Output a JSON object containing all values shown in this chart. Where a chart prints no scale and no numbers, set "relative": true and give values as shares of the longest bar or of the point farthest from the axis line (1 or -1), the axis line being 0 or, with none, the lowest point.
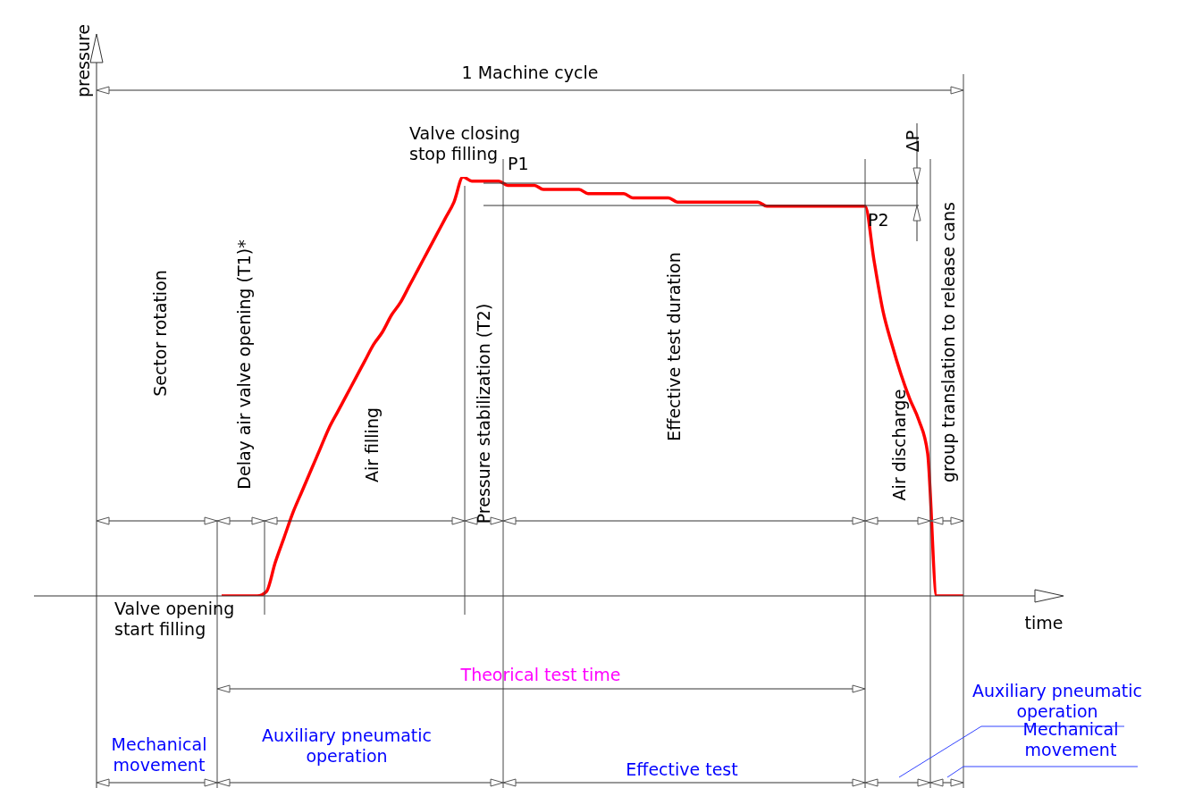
{
  "chart_data": {
    "type": "line",
    "relative": true,
    "xlabel": "time",
    "ylabel": "pressure",
    "marker": "none",
    "line_style": "solid",
    "grid": false,
    "legend": false,
    "categories": [
      null,
      null,
      null,
      null,
      null,
      null,
      null,
      null,
      null,
      null,
      null,
      null,
      null,
      null,
      null,
      null,
      null,
      null,
      null,
      null,
      null,
      null,
      null,
      null,
      null,
      null,
      null,
      null,
      null,
      null,
      null,
      null,
      null,
      null,
      null,
      null,
      null,
      null,
      null,
      null,
      null,
      null,
      null,
      null,
      null,
      null,
      null,
      null,
      null,
      null,
      null,
      null,
      null,
      null,
      null,
      null,
      null,
      null,
      null,
      null,
      null,
      null,
      null,
      null,
      null,
      null,
      null,
      null,
      null,
      null,
      null,
      null,
      null,
      null,
      null,
      null,
      null,
      null,
      null,
      null,
      null,
      null,
      null,
      null,
      null,
      null,
      null,
      null,
      null,
      null,
      null,
      null,
      null,
      null,
      null,
      null,
      null,
      null
    ],
    "series": [
      {
        "color": "#ff0000",
        "values": [
          null,
          null,
          null,
          null,
          null,
          null,
          null,
          null,
          null,
          null,
          null,
          null,
          null,
          null,
          0,
          0,
          0,
          0,
          0,
          0.01,
          0.08,
          0.14,
          0.2,
          0.25,
          0.3,
          0.35,
          0.4,
          0.44,
          0.48,
          0.52,
          0.56,
          0.6,
          0.63,
          0.67,
          0.7,
          0.74,
          0.78,
          0.82,
          0.86,
          0.9,
          0.94,
          1,
          0.99,
          0.99,
          0.99,
          0.99,
          0.98,
          0.98,
          0.98,
          0.98,
          0.97,
          0.97,
          0.97,
          0.97,
          0.97,
          0.96,
          0.96,
          0.96,
          0.96,
          0.96,
          0.95,
          0.95,
          0.95,
          0.95,
          0.95,
          0.94,
          0.94,
          0.94,
          0.94,
          0.94,
          0.94,
          0.94,
          0.94,
          0.94,
          0.94,
          0.93,
          0.93,
          0.93,
          0.93,
          0.93,
          0.93,
          0.93,
          0.93,
          0.93,
          0.93,
          0.93,
          0.93,
          0.8,
          0.68,
          0.6,
          0.53,
          0.47,
          0.42,
          0.34,
          0,
          0,
          0,
          0
        ]
      }
    ],
    "annotations": [
      "1 Machine cycle",
      "Valve closing\nstop filling",
      "P1",
      "P2",
      "ΔP",
      "Sector rotation",
      "Delay air valve opening (T1)*",
      "Air filling",
      "Pressure stabilization (T2)",
      "Effective test duration",
      "Air discharge",
      "group translation to release cans",
      "Valve opening\nstart filling",
      "Theorical test time",
      "Mechanical\nmovement",
      "Auxiliary pneumatic\noperation",
      "Effective test",
      "Auxiliary pneumatic\noperation",
      "Mechanical\nmovement"
    ]
  }
}
